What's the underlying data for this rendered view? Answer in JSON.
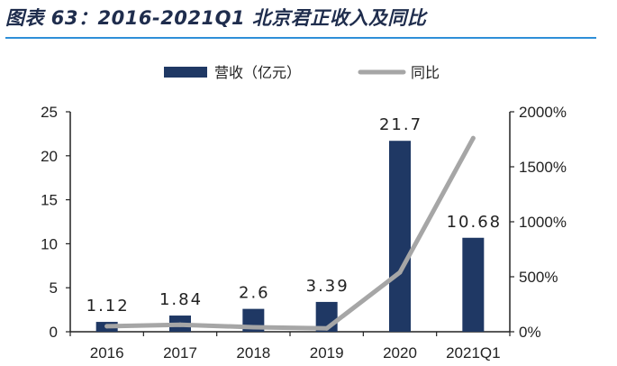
{
  "chart_data": {
    "type": "bar",
    "title": "图表 63：2016-2021Q1 北京君正收入及同比",
    "categories": [
      "2016",
      "2017",
      "2018",
      "2019",
      "2020",
      "2021Q1"
    ],
    "series": [
      {
        "name": "营收（亿元）",
        "type": "bar",
        "axis": "left",
        "values": [
          1.12,
          1.84,
          2.6,
          3.39,
          21.7,
          10.68
        ],
        "labels": [
          "1.12",
          "1.84",
          "2.6",
          "3.39",
          "21.7",
          "10.68"
        ],
        "color": "#1f3864"
      },
      {
        "name": "同比",
        "type": "line",
        "axis": "right",
        "values": [
          50,
          64,
          41,
          30,
          540,
          1760
        ],
        "color": "#a6a6a6"
      }
    ],
    "y_left": {
      "min": 0,
      "max": 25,
      "ticks": [
        0,
        5,
        10,
        15,
        20,
        25
      ],
      "tick_labels": [
        "0",
        "5",
        "10",
        "15",
        "20",
        "25"
      ]
    },
    "y_right": {
      "min": 0,
      "max": 2000,
      "ticks": [
        0,
        500,
        1000,
        1500,
        2000
      ],
      "tick_labels": [
        "0%",
        "500%",
        "1000%",
        "1500%",
        "2000%"
      ]
    },
    "legend_position": "top-center",
    "grid": false
  }
}
